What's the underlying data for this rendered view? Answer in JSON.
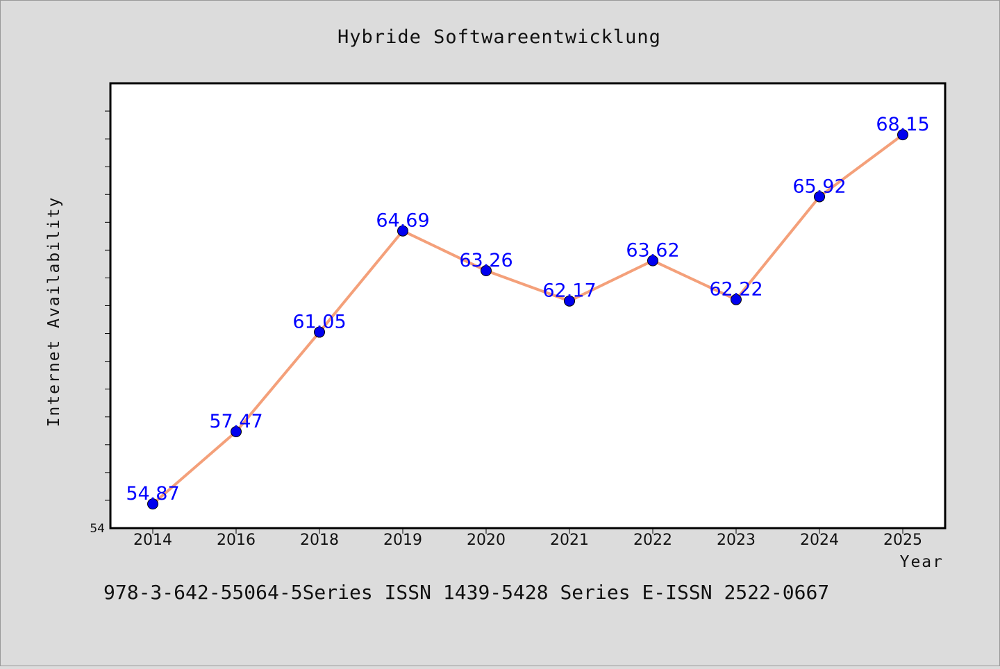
{
  "chart_data": {
    "type": "line",
    "title": "Hybride Softwareentwicklung",
    "xlabel": "Year",
    "ylabel": "Internet Availability",
    "categories": [
      "2014",
      "2016",
      "2018",
      "2019",
      "2020",
      "2021",
      "2022",
      "2023",
      "2024",
      "2025"
    ],
    "series": [
      {
        "values": [
          54.87,
          57.47,
          61.05,
          64.69,
          63.26,
          62.17,
          63.62,
          62.22,
          65.92,
          68.15
        ],
        "line_color": "#f4a07a",
        "marker_color": "#0000ee",
        "label_color": "#0000ff"
      }
    ],
    "ylim": [
      54,
      70
    ],
    "yticks_labeled": [
      "54"
    ],
    "y_minor_tick_step": 1,
    "grid": false,
    "legend": "none",
    "data_labels": true
  },
  "footnote": "978-3-642-55064-5Series ISSN 1439-5428 Series E-ISSN 2522-0667",
  "colors": {
    "background": "#dcdcdc",
    "plot_background": "#ffffff",
    "axis": "#000000"
  }
}
